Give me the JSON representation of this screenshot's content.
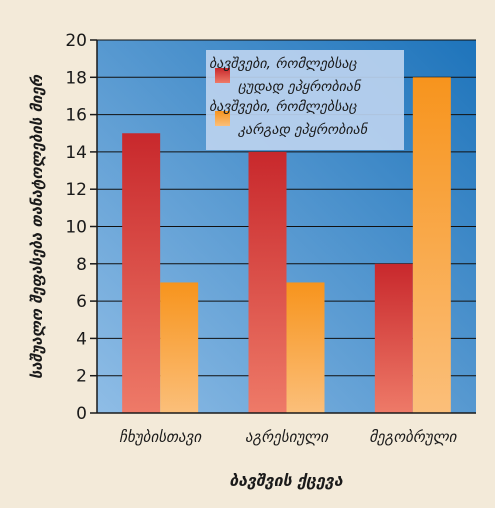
{
  "chart_data": {
    "type": "bar",
    "categories": [
      "ჩხუბისთავი",
      "აგრესიული",
      "მეგობრული"
    ],
    "series": [
      {
        "name": "ბავშვები, რომლებსაც ცუდად ეპყრობიან",
        "values": [
          15,
          14,
          8
        ],
        "color": "#d23a32"
      },
      {
        "name": "ბავშვები, რომლებსაც კარგად ეპყრობიან",
        "values": [
          7,
          7,
          18
        ],
        "color": "#f7941d"
      }
    ],
    "xlabel": "ბავშვის ქცევა",
    "ylabel": "საშუალო შეფასება თანატოლების მიერ",
    "ylim": [
      0,
      20
    ],
    "yticks": [
      0,
      2,
      4,
      6,
      8,
      10,
      12,
      14,
      16,
      18,
      20
    ],
    "grid": true,
    "legend_position": "top-right",
    "legend_lines": [
      [
        "ბავშვები, რომლებსაც",
        "ცუდად ეპყრობიან"
      ],
      [
        "ბავშვები, რომლებსაც",
        "კარგად ეპყრობიან"
      ]
    ],
    "colors": {
      "background": "#f3ead9",
      "plot_top": "#1e74bb",
      "plot_bottom": "#8fbde6",
      "axis": "#1a1a1a"
    }
  }
}
